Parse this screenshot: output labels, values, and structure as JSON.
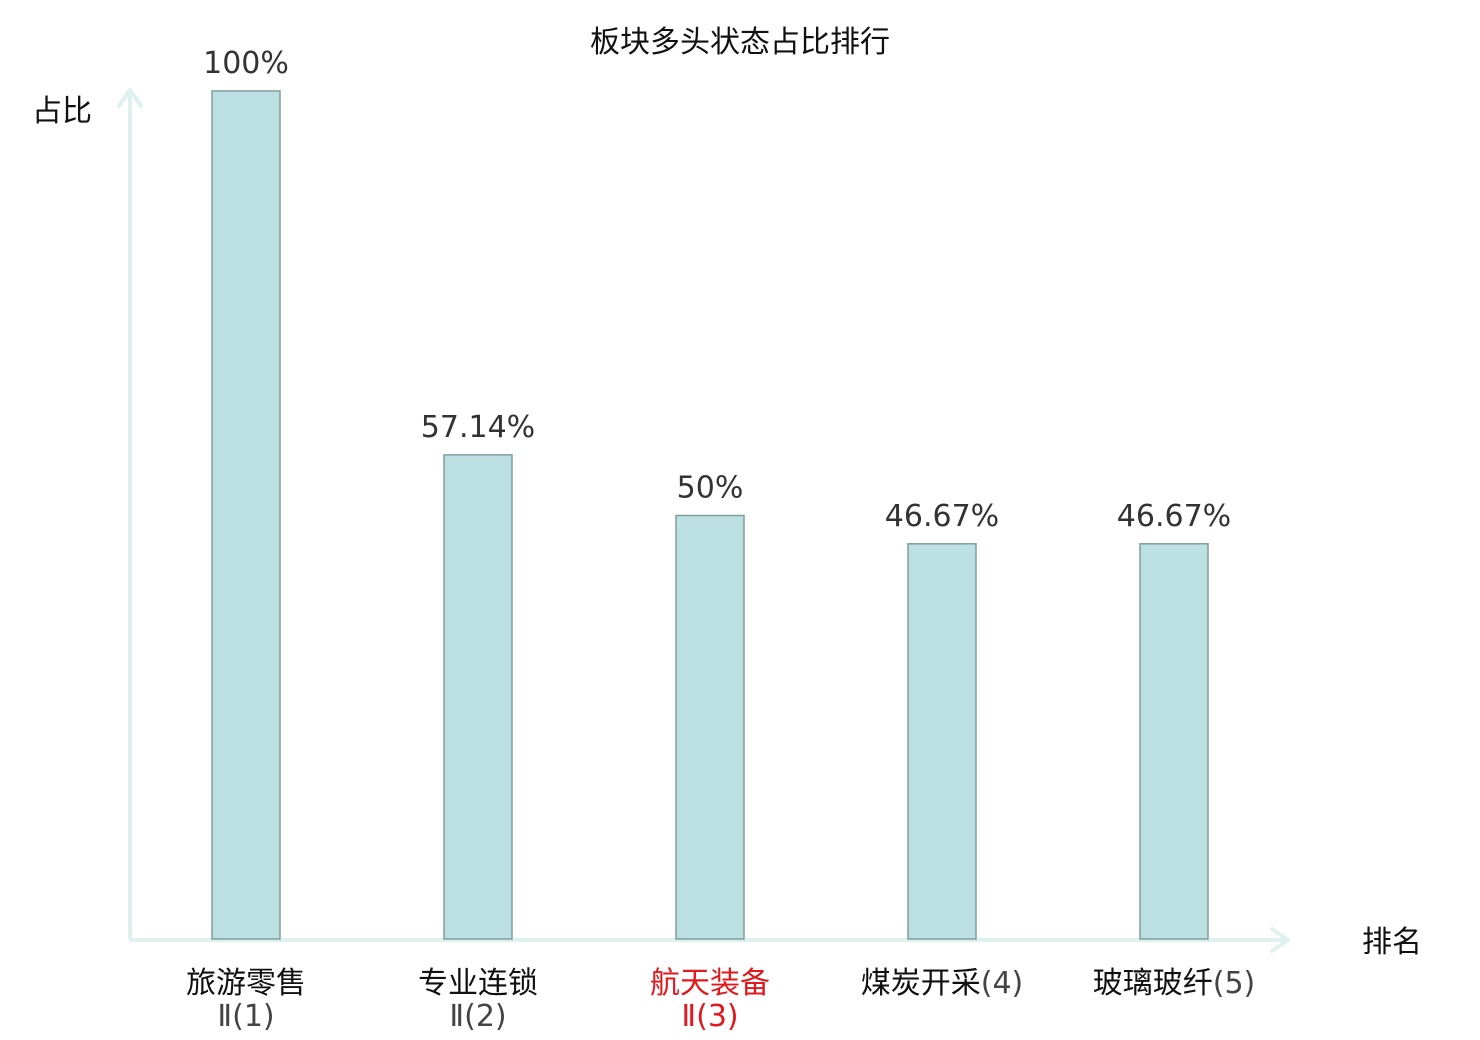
{
  "chart_data": {
    "type": "bar",
    "title": "板块多头状态占比排行",
    "ylabel": "占比",
    "xlabel": "排名",
    "ylim": [
      0,
      100
    ],
    "grid": false,
    "categories": [
      {
        "name": "旅游零售",
        "suffix": "Ⅱ(1)",
        "highlight": false
      },
      {
        "name": "专业连锁",
        "suffix": "Ⅱ(2)",
        "highlight": false
      },
      {
        "name": "航天装备",
        "suffix": "Ⅱ(3)",
        "highlight": true
      },
      {
        "name": "煤炭开采",
        "suffix": "(4)",
        "highlight": false
      },
      {
        "name": "玻璃玻纤",
        "suffix": "(5)",
        "highlight": false
      }
    ],
    "values": [
      100,
      57.14,
      50,
      46.67,
      46.67
    ],
    "value_labels": [
      "100%",
      "57.14%",
      "50%",
      "46.67%",
      "46.67%"
    ],
    "colors": {
      "bar_fill": "#bde0e2",
      "bar_stroke": "#7f9ea0",
      "axis": "#dff1ee",
      "highlight_text": "#e0191e",
      "text": "#111111",
      "suffix_text": "#444444"
    }
  }
}
